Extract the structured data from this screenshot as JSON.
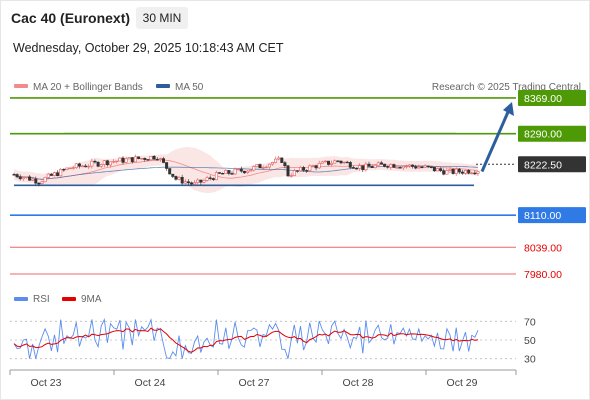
{
  "header": {
    "instrument": "Cac 40 (Euronext)",
    "timeframe": "30 MIN",
    "datetime": "Wednesday, October 29, 2025 10:18:43 AM CET"
  },
  "price_legend": {
    "bollinger": {
      "label": "MA 20 + Bollinger Bands",
      "color": "#f28b8b"
    },
    "ma50": {
      "label": "MA 50",
      "color": "#2c5e9e"
    }
  },
  "credit": "Research © 2025 Trading Central",
  "rsi_legend": {
    "rsi": {
      "label": "RSI",
      "color": "#5b8def"
    },
    "ma9": {
      "label": "9MA",
      "color": "#e60000"
    }
  },
  "chart_data": [
    {
      "type": "candlestick",
      "ylim": [
        7960,
        8380
      ],
      "x_labels": [
        "Oct 23",
        "Oct 24",
        "Oct 27",
        "Oct 28",
        "Oct 29"
      ],
      "levels": [
        {
          "value": 8369.0,
          "label": "8369.00",
          "kind": "resistance",
          "color": "#4e9a06",
          "badge": true
        },
        {
          "value": 8290.0,
          "label": "8290.00",
          "kind": "resistance",
          "color": "#4e9a06",
          "badge": true
        },
        {
          "value": 8222.5,
          "label": "8222.50",
          "kind": "last",
          "color": "#333333",
          "badge": true
        },
        {
          "value": 8110.0,
          "label": "8110.00",
          "kind": "pivot",
          "color": "#2f7ae5",
          "badge": true
        },
        {
          "value": 8039.0,
          "label": "8039.00",
          "kind": "support",
          "color": "#e60000",
          "badge": false
        },
        {
          "value": 7980.0,
          "label": "7980.00",
          "kind": "support",
          "color": "#e60000",
          "badge": false
        }
      ],
      "channel": {
        "upper": 8290,
        "lower": 8176
      },
      "forecast_target": 8369.0
    },
    {
      "type": "line",
      "name": "RSI",
      "ylim": [
        20,
        80
      ],
      "y_ticks": [
        70,
        50,
        30
      ]
    }
  ]
}
